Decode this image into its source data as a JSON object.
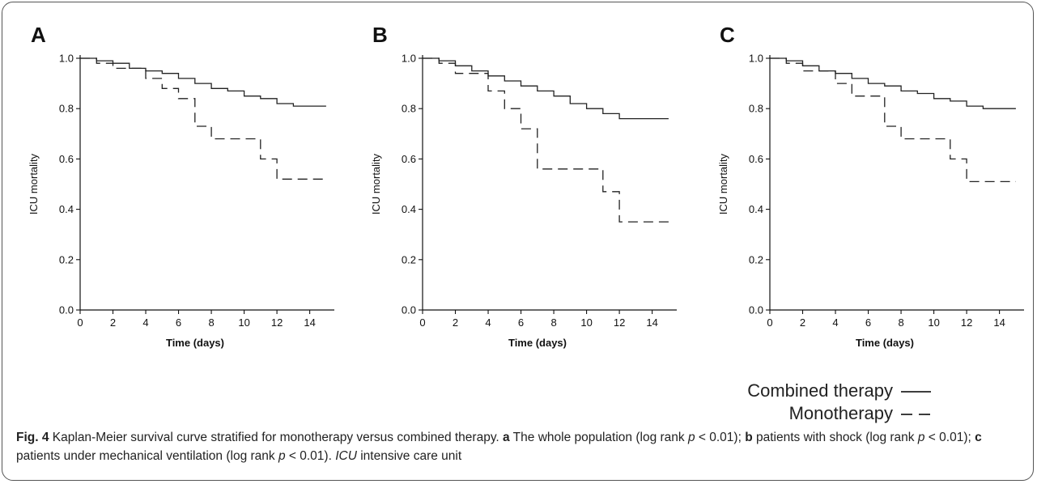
{
  "figure": {
    "caption": {
      "fig_label": "Fig. 4",
      "intro": " Kaplan-Meier survival curve stratified for monotherapy versus combined therapy. ",
      "a_label": "a",
      "a_text": " The whole population (log rank ",
      "b_label": "b",
      "b_text": " patients with shock (log rank ",
      "c_label": "c",
      "c_text": " patients under mechanical ventilation (log rank ",
      "p_symbol": "p",
      "p_value": " < 0.01); ",
      "p_value_last": " < 0.01). ",
      "icu_abbr": "ICU",
      "icu_def": " intensive care unit"
    },
    "legend": {
      "items": [
        {
          "label": "Combined therapy",
          "style": "solid"
        },
        {
          "label": "Monotherapy",
          "style": "dashed"
        }
      ]
    }
  },
  "chart_data": [
    {
      "type": "line",
      "panel": "A",
      "xlabel": "Time (days)",
      "ylabel": "ICU mortality",
      "xlim": [
        0,
        15.5
      ],
      "ylim": [
        0,
        1
      ],
      "xticks": [
        0,
        2,
        4,
        6,
        8,
        10,
        12,
        14
      ],
      "yticks": [
        0.0,
        0.2,
        0.4,
        0.6,
        0.8,
        1.0
      ],
      "series": [
        {
          "name": "Combined therapy",
          "style": "solid",
          "step": true,
          "x": [
            0,
            1,
            2,
            3,
            4,
            5,
            6,
            7,
            8,
            9,
            10,
            11,
            12,
            13,
            15
          ],
          "y": [
            1.0,
            0.99,
            0.98,
            0.96,
            0.95,
            0.94,
            0.92,
            0.9,
            0.88,
            0.87,
            0.85,
            0.84,
            0.82,
            0.81,
            0.81
          ]
        },
        {
          "name": "Monotherapy",
          "style": "dashed",
          "step": true,
          "x": [
            0,
            1,
            2,
            4,
            5,
            6,
            7,
            8,
            11,
            12,
            15
          ],
          "y": [
            1.0,
            0.98,
            0.96,
            0.92,
            0.88,
            0.84,
            0.73,
            0.68,
            0.6,
            0.52,
            0.52
          ]
        }
      ]
    },
    {
      "type": "line",
      "panel": "B",
      "xlabel": "Time (days)",
      "ylabel": "ICU mortality",
      "xlim": [
        0,
        15.5
      ],
      "ylim": [
        0,
        1
      ],
      "xticks": [
        0,
        2,
        4,
        6,
        8,
        10,
        12,
        14
      ],
      "yticks": [
        0.0,
        0.2,
        0.4,
        0.6,
        0.8,
        1.0
      ],
      "series": [
        {
          "name": "Combined therapy",
          "style": "solid",
          "step": true,
          "x": [
            0,
            1,
            2,
            3,
            4,
            5,
            6,
            7,
            8,
            9,
            10,
            11,
            12,
            15
          ],
          "y": [
            1.0,
            0.99,
            0.97,
            0.95,
            0.93,
            0.91,
            0.89,
            0.87,
            0.85,
            0.82,
            0.8,
            0.78,
            0.76,
            0.76
          ]
        },
        {
          "name": "Monotherapy",
          "style": "dashed",
          "step": true,
          "x": [
            0,
            1,
            2,
            4,
            5,
            6,
            7,
            11,
            12,
            15
          ],
          "y": [
            1.0,
            0.98,
            0.94,
            0.87,
            0.8,
            0.72,
            0.56,
            0.47,
            0.35,
            0.35
          ]
        }
      ]
    },
    {
      "type": "line",
      "panel": "C",
      "xlabel": "Time (days)",
      "ylabel": "ICU mortality",
      "xlim": [
        0,
        15.5
      ],
      "ylim": [
        0,
        1
      ],
      "xticks": [
        0,
        2,
        4,
        6,
        8,
        10,
        12,
        14
      ],
      "yticks": [
        0.0,
        0.2,
        0.4,
        0.6,
        0.8,
        1.0
      ],
      "series": [
        {
          "name": "Combined therapy",
          "style": "solid",
          "step": true,
          "x": [
            0,
            1,
            2,
            3,
            4,
            5,
            6,
            7,
            8,
            9,
            10,
            11,
            12,
            13,
            15
          ],
          "y": [
            1.0,
            0.99,
            0.97,
            0.95,
            0.94,
            0.92,
            0.9,
            0.89,
            0.87,
            0.86,
            0.84,
            0.83,
            0.81,
            0.8,
            0.8
          ]
        },
        {
          "name": "Monotherapy",
          "style": "dashed",
          "step": true,
          "x": [
            0,
            1,
            2,
            4,
            5,
            7,
            8,
            11,
            12,
            15
          ],
          "y": [
            1.0,
            0.98,
            0.95,
            0.9,
            0.85,
            0.73,
            0.68,
            0.6,
            0.51,
            0.51
          ]
        }
      ]
    }
  ]
}
